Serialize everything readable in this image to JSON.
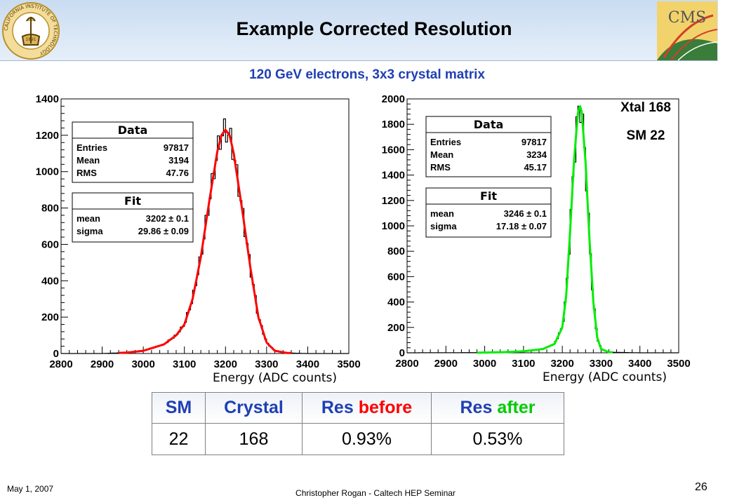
{
  "slide": {
    "title": "Example Corrected Resolution",
    "subtitle": "120 GeV electrons, 3x3 crystal matrix",
    "logo_left_year": "1891",
    "logo_left_text": "CALIFORNIA INSTITUTE OF TECHNOLOGY",
    "logo_right_text": "CMS"
  },
  "chart_data": [
    {
      "type": "histogram",
      "xlabel": "Energy (ADC counts)",
      "ylabel": "",
      "xlim": [
        2800,
        3500
      ],
      "ylim": [
        0,
        1400
      ],
      "xticks": [
        2800,
        2900,
        3000,
        3100,
        3200,
        3300,
        3400,
        3500
      ],
      "yticks": [
        0,
        200,
        400,
        600,
        800,
        1000,
        1200,
        1400
      ],
      "fit_color": "#ff0000",
      "data_color": "#000000",
      "x": [
        2800,
        2900,
        2960,
        3000,
        3050,
        3080,
        3100,
        3120,
        3140,
        3160,
        3180,
        3190,
        3200,
        3210,
        3220,
        3240,
        3260,
        3280,
        3300,
        3320,
        3350,
        3400,
        3500
      ],
      "y": [
        0,
        0,
        5,
        15,
        50,
        100,
        160,
        300,
        530,
        830,
        1110,
        1200,
        1230,
        1200,
        1100,
        800,
        480,
        200,
        60,
        15,
        3,
        0,
        0
      ],
      "stats": {
        "data": {
          "header": "Data",
          "rows": [
            [
              "Entries",
              "97817"
            ],
            [
              "Mean",
              "3194"
            ],
            [
              "RMS",
              "47.76"
            ]
          ]
        },
        "fit": {
          "header": "Fit",
          "rows": [
            [
              "mean",
              "3202 ± 0.1"
            ],
            [
              "sigma",
              "29.86 ± 0.09"
            ]
          ]
        }
      }
    },
    {
      "type": "histogram",
      "xlabel": "Energy (ADC counts)",
      "ylabel": "",
      "xlim": [
        2800,
        3500
      ],
      "ylim": [
        0,
        2000
      ],
      "xticks": [
        2800,
        2900,
        3000,
        3100,
        3200,
        3300,
        3400,
        3500
      ],
      "yticks": [
        0,
        200,
        400,
        600,
        800,
        1000,
        1200,
        1400,
        1600,
        1800,
        2000
      ],
      "fit_color": "#00ee00",
      "data_color": "#000000",
      "x": [
        2800,
        3000,
        3050,
        3100,
        3150,
        3180,
        3200,
        3210,
        3220,
        3230,
        3240,
        3245,
        3250,
        3260,
        3270,
        3280,
        3290,
        3300,
        3320,
        3400,
        3500
      ],
      "y": [
        0,
        2,
        5,
        12,
        30,
        70,
        200,
        450,
        950,
        1500,
        1880,
        1950,
        1900,
        1500,
        900,
        400,
        120,
        30,
        5,
        0,
        0
      ],
      "annotations": [
        "Xtal 168",
        "SM 22"
      ],
      "stats": {
        "data": {
          "header": "Data",
          "rows": [
            [
              "Entries",
              "97817"
            ],
            [
              "Mean",
              "3234"
            ],
            [
              "RMS",
              "45.17"
            ]
          ]
        },
        "fit": {
          "header": "Fit",
          "rows": [
            [
              "mean",
              "3246 ± 0.1"
            ],
            [
              "sigma",
              "17.18 ± 0.07"
            ]
          ]
        }
      }
    }
  ],
  "table": {
    "headers": {
      "sm": "SM",
      "crystal": "Crystal",
      "res_before_a": "Res",
      "res_before_b": "before",
      "res_after_a": "Res",
      "res_after_b": "after"
    },
    "row": {
      "sm": "22",
      "crystal": "168",
      "res_before": "0.93%",
      "res_after": "0.53%"
    }
  },
  "footer": {
    "date": "May 1, 2007",
    "center": "Christopher Rogan - Caltech HEP Seminar",
    "page": "26"
  },
  "colors": {
    "title_blue": "#1f3fb3",
    "header_bg": "#c9dcf1",
    "before_red": "#ff0000",
    "after_green": "#00cc00"
  }
}
